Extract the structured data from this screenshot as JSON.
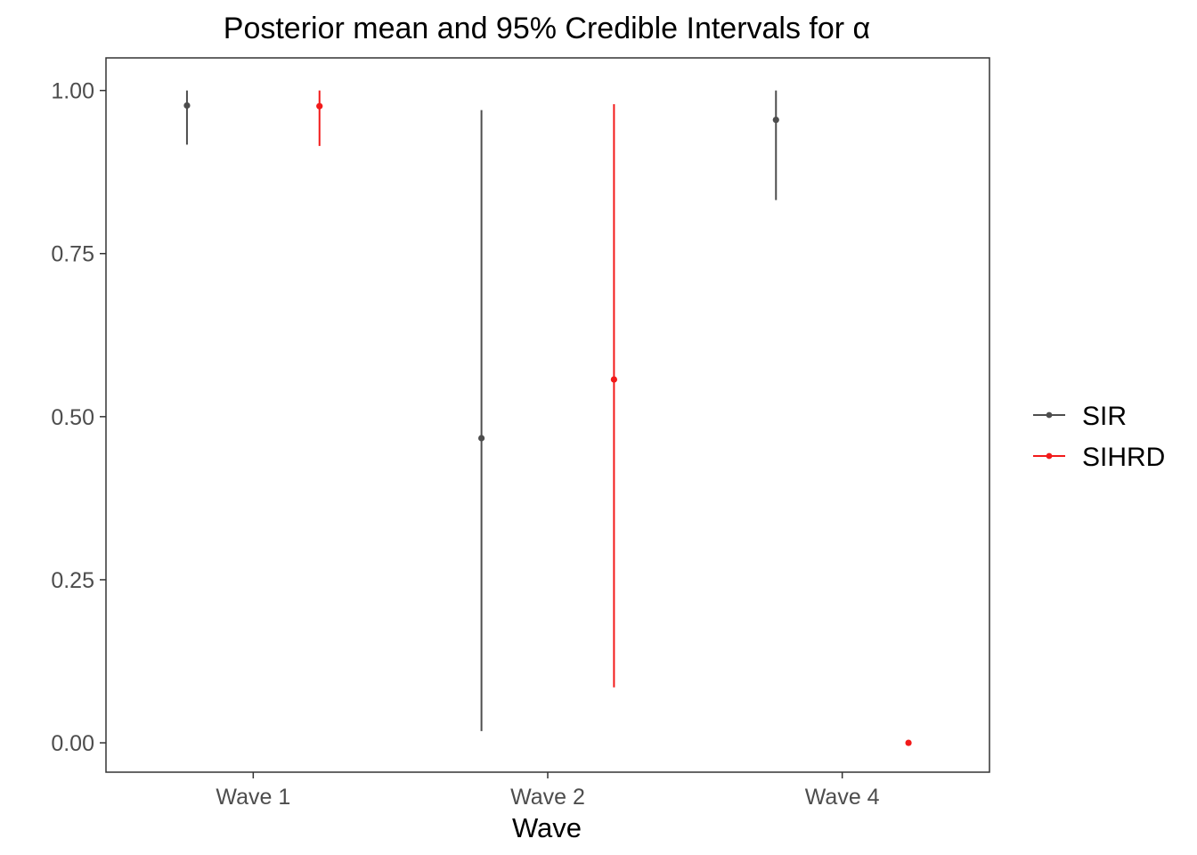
{
  "chart_data": {
    "type": "scatter",
    "title": "Posterior mean and 95% Credible Intervals for α",
    "xlabel": "Wave",
    "ylabel": "",
    "categories": [
      "Wave 1",
      "Wave 2",
      "Wave 4"
    ],
    "ylim": [
      -0.045,
      1.05
    ],
    "yticks": [
      0.0,
      0.25,
      0.5,
      0.75,
      1.0
    ],
    "ytick_labels": [
      "0.00",
      "0.25",
      "0.50",
      "0.75",
      "1.00"
    ],
    "grid": false,
    "legend_position": "right",
    "series": [
      {
        "name": "SIR",
        "color": "#4d4d4d",
        "points": [
          {
            "category": "Wave 1",
            "mean": 0.977,
            "lower": 0.917,
            "upper": 1.0
          },
          {
            "category": "Wave 2",
            "mean": 0.467,
            "lower": 0.018,
            "upper": 0.97
          },
          {
            "category": "Wave 4",
            "mean": 0.955,
            "lower": 0.832,
            "upper": 1.0
          }
        ]
      },
      {
        "name": "SIHRD",
        "color": "#f21a1a",
        "points": [
          {
            "category": "Wave 1",
            "mean": 0.976,
            "lower": 0.915,
            "upper": 1.0
          },
          {
            "category": "Wave 2",
            "mean": 0.557,
            "lower": 0.085,
            "upper": 0.979
          },
          {
            "category": "Wave 4",
            "mean": 0.0,
            "lower": 0.0,
            "upper": 0.0
          }
        ]
      }
    ]
  }
}
